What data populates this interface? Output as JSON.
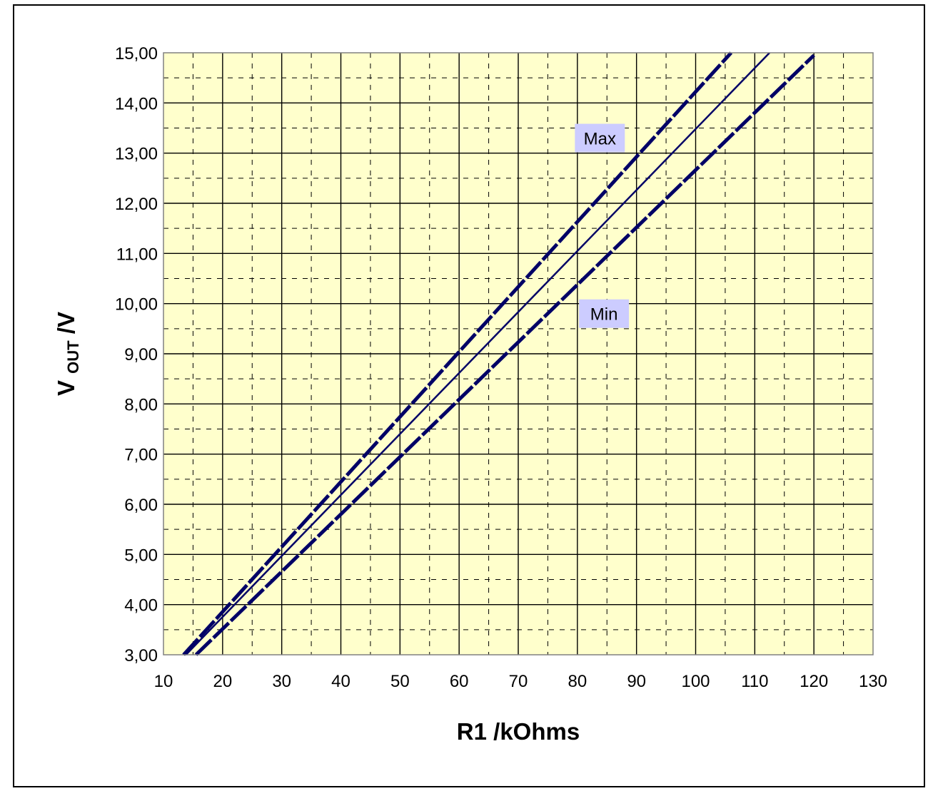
{
  "chart_data": {
    "type": "line",
    "xlabel": "R1 /kOhms",
    "ylabel": {
      "main": "V",
      "sub": "OUT",
      "unit": " /V"
    },
    "xlim": [
      10,
      130
    ],
    "ylim": [
      3,
      15
    ],
    "x_ticks": [
      "10",
      "20",
      "30",
      "40",
      "50",
      "60",
      "70",
      "80",
      "90",
      "100",
      "110",
      "120",
      "130"
    ],
    "y_ticks": [
      "3,00",
      "4,00",
      "5,00",
      "6,00",
      "7,00",
      "8,00",
      "9,00",
      "10,00",
      "11,00",
      "12,00",
      "13,00",
      "14,00",
      "15,00"
    ],
    "grid": {
      "major": true,
      "minor_dashed": true
    },
    "plot_background": "#FFFFCC",
    "line_color": "#000066",
    "series": [
      {
        "name": "",
        "style": "solid",
        "x": [
          13.8,
          112.5
        ],
        "y": [
          3.0,
          15.0
        ]
      },
      {
        "name": "",
        "style": "dashed",
        "x": [
          13.4,
          106.0
        ],
        "y": [
          3.0,
          15.0
        ]
      },
      {
        "name": "",
        "style": "dashed",
        "x": [
          15.5,
          120.0
        ],
        "y": [
          3.0,
          14.95
        ]
      }
    ],
    "annotations": [
      {
        "text": "Max",
        "x": 83.8,
        "y": 13.3
      },
      {
        "text": "Min",
        "x": 84.5,
        "y": 9.8
      }
    ],
    "annotation_background": "#CCCCFF"
  }
}
